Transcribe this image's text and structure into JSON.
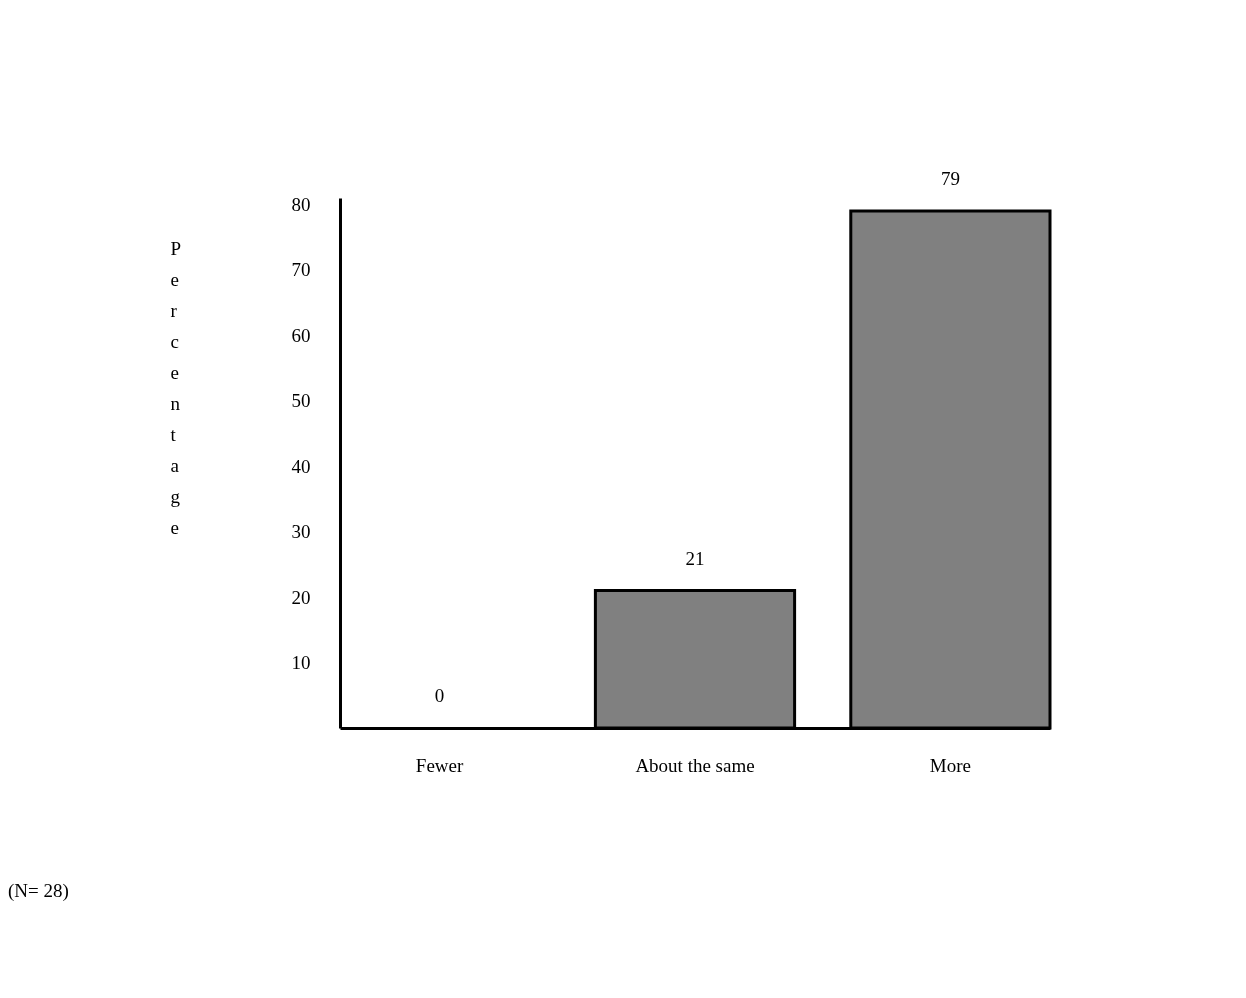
{
  "chart_data": {
    "type": "bar",
    "ylabel": "Percentage",
    "categories": [
      "Fewer",
      "About the same",
      "More"
    ],
    "values": [
      0,
      21,
      79
    ],
    "data_labels": true,
    "color": "#808080",
    "ylim": [
      0,
      81
    ],
    "yticks": [
      10,
      20,
      30,
      40,
      50,
      60,
      70,
      80
    ],
    "grid": false,
    "annotations": [
      "(N= 28)"
    ]
  }
}
